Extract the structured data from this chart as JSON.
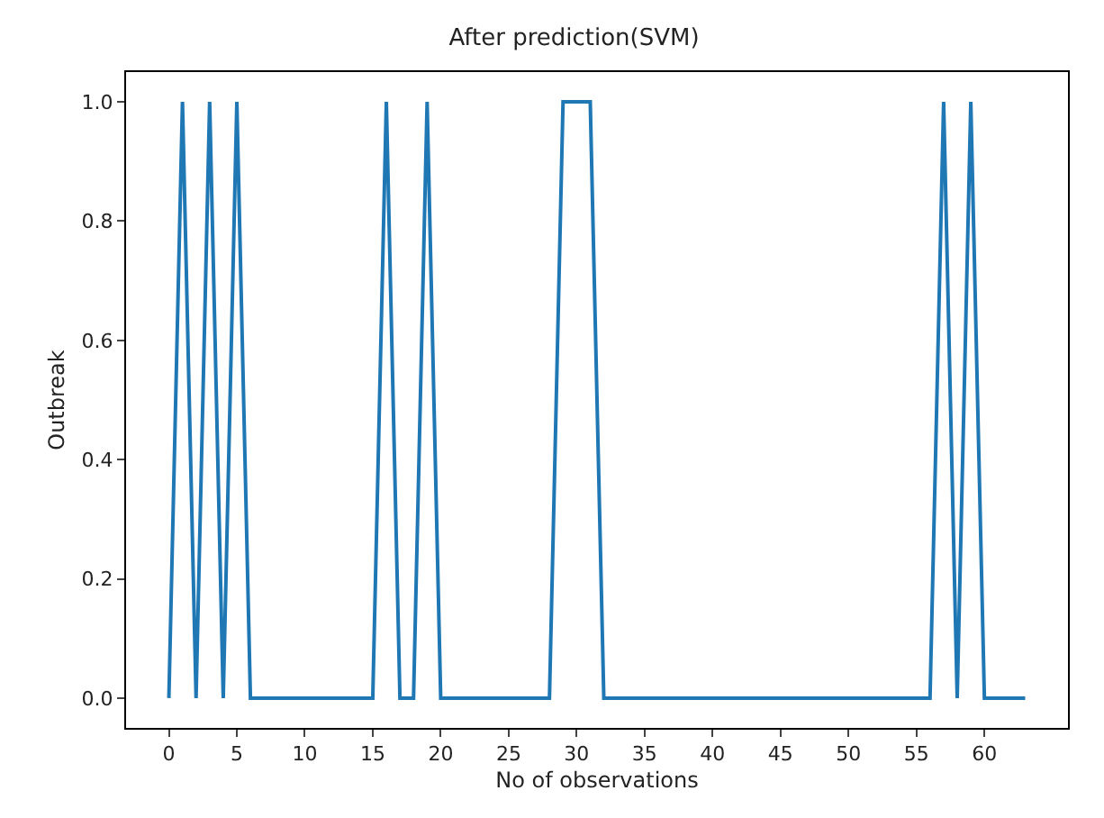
{
  "chart_data": {
    "type": "line",
    "title": "After prediction(SVM)",
    "xlabel": "No of observations",
    "ylabel": "Outbreak",
    "x": [
      0,
      1,
      2,
      3,
      4,
      5,
      6,
      7,
      8,
      9,
      10,
      11,
      12,
      13,
      14,
      15,
      16,
      17,
      18,
      19,
      20,
      21,
      22,
      23,
      24,
      25,
      26,
      27,
      28,
      29,
      30,
      31,
      32,
      33,
      34,
      35,
      36,
      37,
      38,
      39,
      40,
      41,
      42,
      43,
      44,
      45,
      46,
      47,
      48,
      49,
      50,
      51,
      52,
      53,
      54,
      55,
      56,
      57,
      58,
      59,
      60,
      61,
      62,
      63
    ],
    "series": [
      {
        "color": "#1f77b4",
        "values": [
          0,
          1,
          0,
          1,
          0,
          1,
          0,
          0,
          0,
          0,
          0,
          0,
          0,
          0,
          0,
          0,
          1,
          0,
          0,
          1,
          0,
          0,
          0,
          0,
          0,
          0,
          0,
          0,
          0,
          1,
          1,
          1,
          0,
          0,
          0,
          0,
          0,
          0,
          0,
          0,
          0,
          0,
          0,
          0,
          0,
          0,
          0,
          0,
          0,
          0,
          0,
          0,
          0,
          0,
          0,
          0,
          0,
          1,
          0,
          1,
          0,
          0,
          0,
          0
        ]
      }
    ],
    "xlim": [
      -3.15,
      66.15
    ],
    "ylim": [
      -0.05,
      1.05
    ],
    "xticks": [
      0,
      5,
      10,
      15,
      20,
      25,
      30,
      35,
      40,
      45,
      50,
      55,
      60
    ],
    "yticks": [
      {
        "value": 0,
        "label": "0.0"
      },
      {
        "value": 0.2,
        "label": "0.2"
      },
      {
        "value": 0.4,
        "label": "0.4"
      },
      {
        "value": 0.6,
        "label": "0.6"
      },
      {
        "value": 0.8,
        "label": "0.8"
      },
      {
        "value": 1,
        "label": "1.0"
      }
    ],
    "marker": "none",
    "line_style": "solid"
  }
}
